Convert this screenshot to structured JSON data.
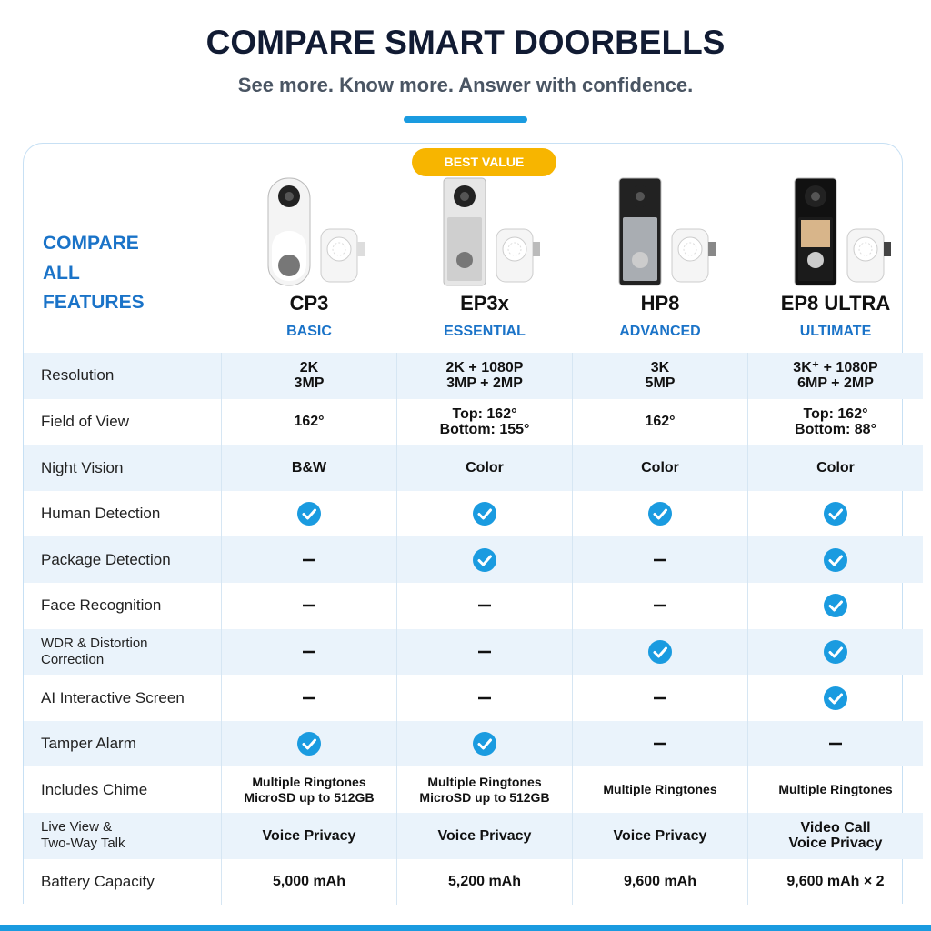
{
  "header": {
    "title": "COMPARE SMART DOORBELLS",
    "subtitle": "See more. Know more. Answer with confidence."
  },
  "table": {
    "heading": [
      "COMPARE",
      "ALL",
      "FEATURES"
    ],
    "badge": "BEST VALUE",
    "products": [
      {
        "name": "CP3",
        "tier": "BASIC"
      },
      {
        "name": "EP3x",
        "tier": "ESSENTIAL"
      },
      {
        "name": "HP8",
        "tier": "ADVANCED"
      },
      {
        "name": "EP8 ULTRA",
        "tier": "ULTIMATE"
      }
    ],
    "rows": [
      {
        "feature": [
          "Resolution"
        ],
        "cells": [
          [
            "2K",
            "3MP"
          ],
          [
            "2K + 1080P",
            "3MP + 2MP"
          ],
          [
            "3K",
            "5MP"
          ],
          [
            "3K⁺ + 1080P",
            "6MP + 2MP"
          ]
        ]
      },
      {
        "feature": [
          "Field of View"
        ],
        "cells": [
          [
            "162°"
          ],
          [
            "Top: 162°",
            "Bottom: 155°"
          ],
          [
            "162°"
          ],
          [
            "Top: 162°",
            "Bottom: 88°"
          ]
        ]
      },
      {
        "feature": [
          "Night Vision"
        ],
        "cells": [
          [
            "B&W"
          ],
          [
            "Color"
          ],
          [
            "Color"
          ],
          [
            "Color"
          ]
        ]
      },
      {
        "feature": [
          "Human Detection"
        ]
      },
      {
        "feature": [
          "Package Detection"
        ]
      },
      {
        "feature": [
          "Face Recognition"
        ]
      },
      {
        "feature": [
          "WDR & Distortion",
          "Correction"
        ]
      },
      {
        "feature": [
          "AI Interactive Screen"
        ]
      },
      {
        "feature": [
          "Tamper Alarm"
        ]
      },
      {
        "feature": [
          "Includes Chime"
        ],
        "cells": [
          [
            "Multiple Ringtones",
            "MicroSD up to 512GB"
          ],
          [
            "Multiple Ringtones",
            "MicroSD up to 512GB"
          ],
          [
            "Multiple Ringtones"
          ],
          [
            "Multiple Ringtones"
          ]
        ]
      },
      {
        "feature": [
          "Live View &",
          "Two-Way Talk"
        ],
        "cells": [
          [
            "Voice Privacy"
          ],
          [
            "Voice Privacy"
          ],
          [
            "Voice Privacy"
          ],
          [
            "Video Call",
            "Voice Privacy"
          ]
        ]
      },
      {
        "feature": [
          "Battery Capacity"
        ],
        "cells": [
          [
            "5,000 mAh"
          ],
          [
            "5,200 mAh"
          ],
          [
            "9,600 mAh"
          ],
          [
            "9,600 mAh × 2"
          ]
        ]
      }
    ]
  }
}
